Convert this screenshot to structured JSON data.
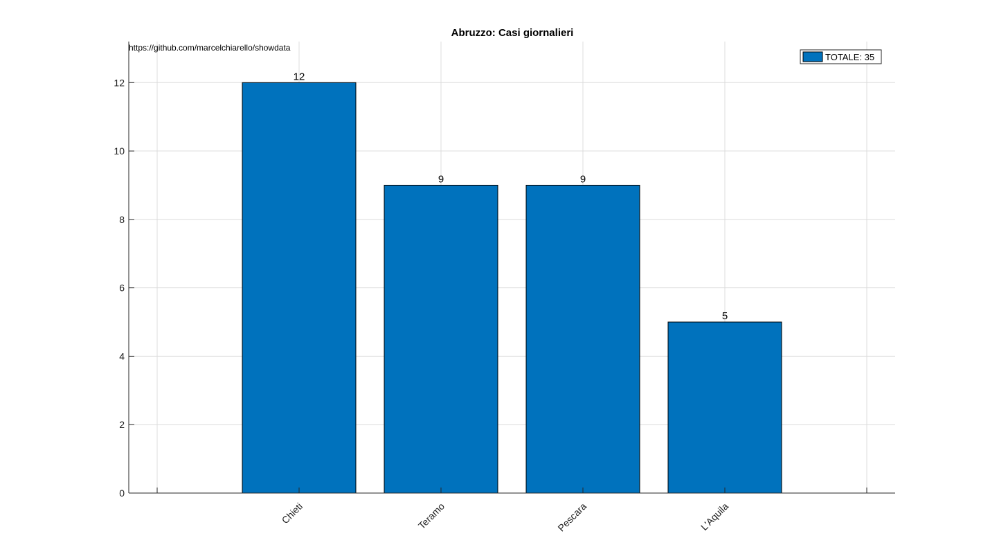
{
  "chart_data": {
    "type": "bar",
    "title": "Abruzzo: Casi giornalieri",
    "source_text": "https://github.com/marcelchiarello/showdata",
    "categories": [
      "Chieti",
      "Teramo",
      "Pescara",
      "L'Aquila"
    ],
    "values": [
      12,
      9,
      9,
      5
    ],
    "data_labels": [
      "12",
      "9",
      "9",
      "5"
    ],
    "series": [
      {
        "name": "TOTALE: 35",
        "values": [
          12,
          9,
          9,
          5
        ],
        "color": "#0072BD"
      }
    ],
    "ylim": [
      0,
      13.2
    ],
    "xlim": [
      0,
      5.4
    ],
    "yticks": [
      0,
      2,
      4,
      6,
      8,
      10,
      12
    ],
    "xtick_positions": [
      0.2,
      1.2,
      2.2,
      3.2,
      4.2,
      5.2
    ],
    "bar_positions": [
      1.2,
      2.2,
      3.2,
      4.2
    ],
    "bar_width": 0.8,
    "grid": true,
    "legend_position": "top-right",
    "bar_color": "#0072BD",
    "xlabel": "",
    "ylabel": ""
  }
}
